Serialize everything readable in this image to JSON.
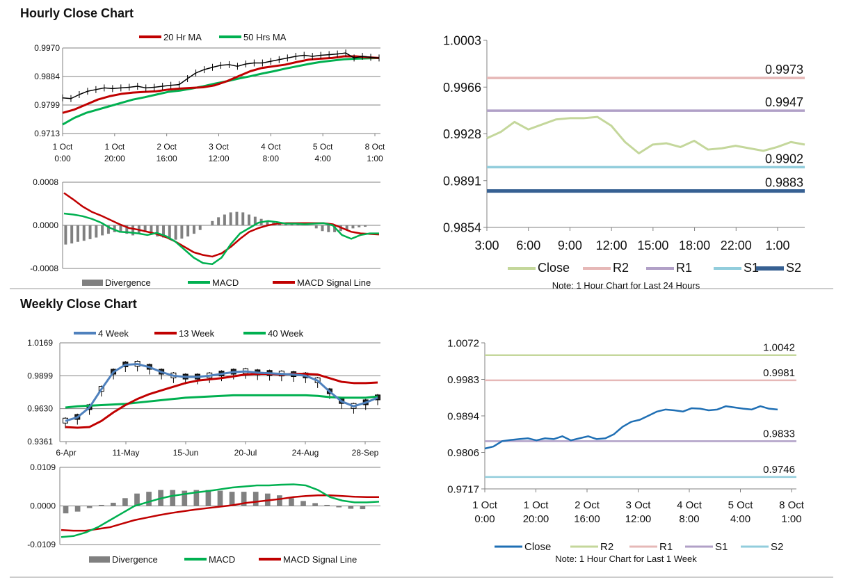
{
  "colors": {
    "ma20": "#c00000",
    "ma50": "#00b050",
    "price": "#000000",
    "divergence": "#808080",
    "macd": "#00b050",
    "signal": "#c00000",
    "close_green": "#c4d79b",
    "r2_pink": "#e6b8b7",
    "r1_purple": "#b1a0c7",
    "s1_blue": "#92cddc",
    "s2_navy": "#366092",
    "close_blue": "#1f6fb4",
    "r2_green": "#c4d79b",
    "s2_light": "#92cddc",
    "wk4": "#4f81bd",
    "wk13": "#c00000",
    "wk40": "#00b050",
    "grid": "#808080"
  },
  "sections": {
    "hourly_title": "Hourly Close Chart",
    "weekly_title": "Weekly Close Chart"
  },
  "chart_data": [
    {
      "id": "hourly_price",
      "type": "line",
      "legend": [
        "20 Hr MA",
        "50 Hrs MA"
      ],
      "ylim": [
        0.9713,
        0.997
      ],
      "yticks": [
        "0.9970",
        "0.9884",
        "0.9799",
        "0.9713"
      ],
      "xticks": [
        [
          "1 Oct",
          "0:00"
        ],
        [
          "1 Oct",
          "20:00"
        ],
        [
          "2 Oct",
          "16:00"
        ],
        [
          "3 Oct",
          "12:00"
        ],
        [
          "4 Oct",
          "8:00"
        ],
        [
          "5 Oct",
          "4:00"
        ],
        [
          "8 Oct",
          "1:00"
        ]
      ],
      "series": [
        {
          "name": "20 Hr MA",
          "values": [
            0.9775,
            0.9785,
            0.98,
            0.9815,
            0.9825,
            0.9832,
            0.9836,
            0.9838,
            0.984,
            0.9845,
            0.9848,
            0.985,
            0.9852,
            0.9858,
            0.987,
            0.9885,
            0.99,
            0.991,
            0.9915,
            0.992,
            0.9928,
            0.9935,
            0.9938,
            0.994,
            0.9945,
            0.9945,
            0.9942,
            0.994
          ]
        },
        {
          "name": "50 Hrs MA",
          "values": [
            0.974,
            0.976,
            0.9775,
            0.9785,
            0.9795,
            0.9805,
            0.9815,
            0.9822,
            0.983,
            0.9838,
            0.9842,
            0.9848,
            0.9855,
            0.9863,
            0.987,
            0.9878,
            0.9885,
            0.9893,
            0.99,
            0.9908,
            0.9915,
            0.9922,
            0.9928,
            0.9932,
            0.9936,
            0.9938,
            0.9939,
            0.994
          ]
        },
        {
          "name": "price",
          "values": [
            0.982,
            0.9818,
            0.983,
            0.984,
            0.9845,
            0.985,
            0.9848,
            0.985,
            0.9852,
            0.9855,
            0.985,
            0.9852,
            0.9855,
            0.9858,
            0.986,
            0.9878,
            0.9895,
            0.9905,
            0.9912,
            0.9918,
            0.992,
            0.9915,
            0.9922,
            0.9925,
            0.9925,
            0.993,
            0.9935,
            0.994,
            0.9945,
            0.9948,
            0.9945,
            0.9948,
            0.995,
            0.9952,
            0.9955,
            0.994,
            0.9945,
            0.9942,
            0.994
          ]
        }
      ]
    },
    {
      "id": "hourly_macd",
      "type": "bar",
      "legend": [
        "Divergence",
        "MACD",
        "MACD Signal Line"
      ],
      "ylim": [
        -0.0008,
        0.0008
      ],
      "yticks": [
        "0.0008",
        "0.0000",
        "-0.0008"
      ],
      "series": [
        {
          "name": "Divergence",
          "values": [
            -0.00035,
            -0.00033,
            -0.0003,
            -0.00028,
            -0.00025,
            -0.00022,
            -0.00018,
            -0.00015,
            -0.00012,
            -0.0001,
            -0.00015,
            -0.00018,
            -0.00014,
            -0.00012,
            -0.00016,
            -0.0002,
            -0.00022,
            -0.00025,
            -0.00026,
            -0.00024,
            -0.0002,
            -0.00015,
            -8e-05,
            0.0,
            8e-05,
            0.00015,
            0.0002,
            0.00024,
            0.00025,
            0.00024,
            0.0002,
            0.00016,
            0.00012,
            8e-05,
            5e-05,
            3e-05,
            3e-05,
            3e-05,
            3e-05,
            3e-05,
            0.0,
            -5e-05,
            -0.0001,
            -0.00012,
            -0.00012,
            -0.0001,
            -8e-05,
            -5e-05,
            -3e-05,
            -2e-05,
            0.0,
            0.0
          ]
        },
        {
          "name": "MACD",
          "values": [
            0.00022,
            0.0002,
            0.00017,
            0.00012,
            5e-05,
            -5e-05,
            -0.00012,
            -0.00013,
            -0.00015,
            -0.00018,
            -0.00014,
            -0.0002,
            -0.0003,
            -0.00045,
            -0.0006,
            -0.0007,
            -0.00072,
            -0.0006,
            -0.00035,
            -0.00015,
            -5e-05,
            5e-05,
            8e-05,
            6e-05,
            3e-05,
            3e-05,
            2e-05,
            3e-05,
            4e-05,
            0.0,
            -0.00018,
            -0.00025,
            -0.00018,
            -0.00015,
            -0.00015
          ]
        },
        {
          "name": "MACD Signal Line",
          "values": [
            0.0006,
            0.00048,
            0.00035,
            0.00025,
            0.00018,
            0.0001,
            2e-05,
            -5e-05,
            -8e-05,
            -0.00012,
            -0.00016,
            -0.00022,
            -0.0003,
            -0.0004,
            -0.0005,
            -0.00055,
            -0.00058,
            -0.00052,
            -0.0004,
            -0.00025,
            -0.00012,
            -5e-05,
            0.0,
            3e-05,
            4e-05,
            4e-05,
            4e-05,
            4e-05,
            4e-05,
            2e-05,
            -5e-05,
            -0.00012,
            -0.00015,
            -0.00016,
            -0.00017
          ]
        }
      ]
    },
    {
      "id": "hourly_24h",
      "type": "line",
      "title": "Note: 1 Hour Chart for Last 24 Hours",
      "legend": [
        "Close",
        "R2",
        "R1",
        "S1",
        "S2"
      ],
      "ylim": [
        0.9854,
        1.0003
      ],
      "yticks": [
        "1.0003",
        "0.9966",
        "0.9928",
        "0.9891",
        "0.9854"
      ],
      "xticks": [
        "3:00",
        "6:00",
        "9:00",
        "12:00",
        "15:00",
        "18:00",
        "22:00",
        "1:00"
      ],
      "levels": [
        {
          "name": "R2",
          "value": 0.9973,
          "label": "0.9973"
        },
        {
          "name": "R1",
          "value": 0.9947,
          "label": "0.9947"
        },
        {
          "name": "S1",
          "value": 0.9902,
          "label": "0.9902"
        },
        {
          "name": "S2",
          "value": 0.9883,
          "label": "0.9883"
        }
      ],
      "series": [
        {
          "name": "Close",
          "values": [
            0.9925,
            0.993,
            0.9938,
            0.9932,
            0.9936,
            0.994,
            0.9941,
            0.9941,
            0.9942,
            0.9935,
            0.9922,
            0.9913,
            0.992,
            0.9921,
            0.9918,
            0.9923,
            0.9916,
            0.9917,
            0.9919,
            0.9917,
            0.9915,
            0.9918,
            0.9922,
            0.992
          ]
        }
      ]
    },
    {
      "id": "weekly_price",
      "type": "line",
      "legend": [
        "4 Week",
        "13 Week",
        "40 Week"
      ],
      "ylim": [
        0.9361,
        1.0169
      ],
      "yticks": [
        "1.0169",
        "0.9899",
        "0.9630",
        "0.9361"
      ],
      "xticks": [
        "6-Apr",
        "11-May",
        "15-Jun",
        "20-Jul",
        "24-Aug",
        "28-Sep"
      ],
      "series": [
        {
          "name": "4 Week",
          "values": [
            0.953,
            0.956,
            0.964,
            0.979,
            0.993,
            0.999,
            0.9995,
            0.997,
            0.993,
            0.99,
            0.989,
            0.989,
            0.99,
            0.9915,
            0.993,
            0.9935,
            0.9925,
            0.992,
            0.9915,
            0.991,
            0.99,
            0.986,
            0.977,
            0.969,
            0.965,
            0.968,
            0.972
          ]
        },
        {
          "name": "13 Week",
          "values": [
            0.948,
            0.9475,
            0.948,
            0.953,
            0.96,
            0.966,
            0.971,
            0.975,
            0.978,
            0.981,
            0.984,
            0.986,
            0.987,
            0.988,
            0.9895,
            0.991,
            0.9915,
            0.9915,
            0.991,
            0.9915,
            0.9915,
            0.991,
            0.988,
            0.985,
            0.984,
            0.984,
            0.9845
          ]
        },
        {
          "name": "40 Week",
          "values": [
            0.964,
            0.965,
            0.9655,
            0.966,
            0.9665,
            0.967,
            0.968,
            0.969,
            0.97,
            0.971,
            0.972,
            0.9725,
            0.973,
            0.9735,
            0.974,
            0.974,
            0.974,
            0.974,
            0.974,
            0.974,
            0.974,
            0.9735,
            0.9725,
            0.972,
            0.972,
            0.972,
            0.973
          ]
        }
      ]
    },
    {
      "id": "weekly_macd",
      "type": "bar",
      "legend": [
        "Divergence",
        "MACD",
        "MACD Signal Line"
      ],
      "ylim": [
        -0.0109,
        0.0109
      ],
      "yticks": [
        "0.0109",
        "0.0000",
        "-0.0109"
      ],
      "series": [
        {
          "name": "Divergence",
          "values": [
            -0.002,
            -0.0015,
            -0.0005,
            0.0003,
            0.0009,
            0.0022,
            0.0035,
            0.004,
            0.0045,
            0.0045,
            0.0043,
            0.0045,
            0.0045,
            0.0043,
            0.004,
            0.004,
            0.004,
            0.0035,
            0.003,
            0.0022,
            0.0014,
            0.0008,
            0.0003,
            -0.0003,
            -0.0007,
            -0.0008,
            0.0
          ]
        },
        {
          "name": "MACD",
          "values": [
            -0.0088,
            -0.0085,
            -0.0075,
            -0.006,
            -0.004,
            -0.002,
            0.0,
            0.001,
            0.002,
            0.0028,
            0.0033,
            0.0038,
            0.0042,
            0.0047,
            0.0052,
            0.0055,
            0.0058,
            0.0058,
            0.006,
            0.0061,
            0.0058,
            0.0045,
            0.0025,
            0.0015,
            0.001,
            0.001,
            0.0012
          ]
        },
        {
          "name": "MACD Signal Line",
          "values": [
            -0.0068,
            -0.007,
            -0.007,
            -0.0065,
            -0.006,
            -0.005,
            -0.004,
            -0.0033,
            -0.0026,
            -0.002,
            -0.0015,
            -0.001,
            -0.0006,
            -0.0002,
            0.0002,
            0.0008,
            0.0012,
            0.0016,
            0.002,
            0.0025,
            0.0028,
            0.003,
            0.003,
            0.0028,
            0.0026,
            0.0025,
            0.0025
          ]
        }
      ]
    },
    {
      "id": "hourly_week",
      "type": "line",
      "title": "Note: 1 Hour Chart for Last 1 Week",
      "legend": [
        "Close",
        "R2",
        "R1",
        "S1",
        "S2"
      ],
      "ylim": [
        0.9717,
        1.0072
      ],
      "yticks": [
        "1.0072",
        "0.9983",
        "0.9894",
        "0.9806",
        "0.9717"
      ],
      "xticks": [
        [
          "1 Oct",
          "0:00"
        ],
        [
          "1 Oct",
          "20:00"
        ],
        [
          "2 Oct",
          "16:00"
        ],
        [
          "3 Oct",
          "12:00"
        ],
        [
          "4 Oct",
          "8:00"
        ],
        [
          "5 Oct",
          "4:00"
        ],
        [
          "8 Oct",
          "1:00"
        ]
      ],
      "levels": [
        {
          "name": "R2",
          "value": 1.0042,
          "label": "1.0042"
        },
        {
          "name": "R1",
          "value": 0.9981,
          "label": "0.9981"
        },
        {
          "name": "S1",
          "value": 0.9833,
          "label": "0.9833"
        },
        {
          "name": "S2",
          "value": 0.9746,
          "label": "0.9746"
        }
      ],
      "series": [
        {
          "name": "Close",
          "values": [
            0.9815,
            0.982,
            0.9833,
            0.9836,
            0.9838,
            0.984,
            0.9835,
            0.984,
            0.9838,
            0.9845,
            0.9835,
            0.984,
            0.9845,
            0.9838,
            0.984,
            0.985,
            0.9868,
            0.988,
            0.9885,
            0.9895,
            0.9905,
            0.991,
            0.9908,
            0.9905,
            0.9913,
            0.9912,
            0.9908,
            0.991,
            0.9918,
            0.9915,
            0.9912,
            0.991,
            0.9918,
            0.9912,
            0.991
          ]
        }
      ]
    }
  ]
}
